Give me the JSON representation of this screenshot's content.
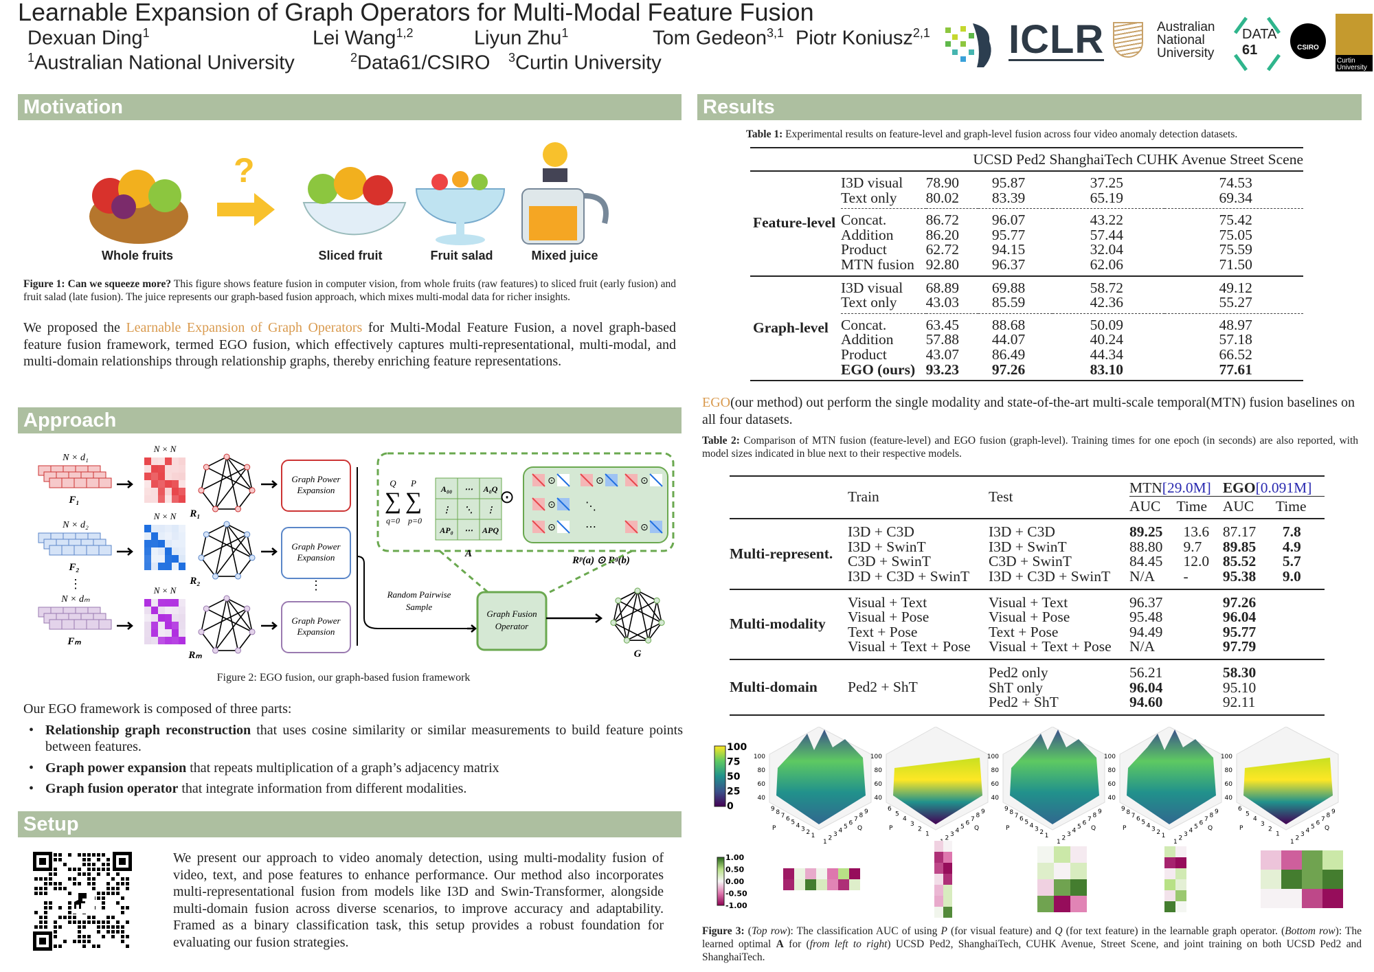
{
  "header": {
    "title": "Learnable Expansion of Graph Operators for Multi-Modal Feature Fusion",
    "authors": [
      {
        "name": "Dexuan Ding",
        "sup": "1"
      },
      {
        "name": "Lei Wang",
        "sup": "1,2"
      },
      {
        "name": "Liyun Zhu",
        "sup": "1"
      },
      {
        "name": "Tom Gedeon",
        "sup": "3,1"
      },
      {
        "name": "Piotr Koniusz",
        "sup": "2,1"
      }
    ],
    "affiliations": [
      {
        "sup": "1",
        "name": "Australian National University"
      },
      {
        "sup": "2",
        "name": "Data61/CSIRO"
      },
      {
        "sup": "3",
        "name": "Curtin University"
      }
    ],
    "logos": {
      "iclr": "ICLR",
      "anu": "Australian National University",
      "data61_a": "DATA",
      "data61_b": "61",
      "csiro": "CSIRO",
      "curtin": "Curtin University"
    }
  },
  "motivation": {
    "heading": "Motivation",
    "labels": [
      "Whole fruits",
      "Sliced fruit",
      "Fruit salad",
      "Mixed juice"
    ],
    "question": "?",
    "caption_bold": "Figure 1: Can we squeeze more?",
    "caption": " This figure shows feature fusion in computer vision, from whole fruits (raw features) to sliced fruit (early fusion) and fruit salad (late fusion). The juice represents our graph-based fusion approach, which mixes multi-modal data for richer insights.",
    "para_pre": "We proposed the ",
    "para_highlight": "Learnable Expansion of Graph Operators",
    "para_post": " for Multi-Modal Feature Fusion, a novel graph-based feature fusion framework, termed EGO fusion, which effectively captures multi-representational, multi-modal, and multi-domain relationships through relationship graphs, thereby enriching feature representations."
  },
  "approach": {
    "heading": "Approach",
    "diagram": {
      "nd": [
        "N × d₁",
        "N × d₂",
        "N × dₘ"
      ],
      "nn": "N × N",
      "F": [
        "F₁",
        "F₂",
        "Fₘ"
      ],
      "R": [
        "R₁",
        "R₂",
        "Rₘ"
      ],
      "gpe": "Graph Power Expansion",
      "sum_q": "Q",
      "sum_p": "P",
      "q0": "q=0",
      "p0": "p=0",
      "A": "A",
      "a_cells": [
        "A₀₀",
        "⋯",
        "A₀Q",
        "⋮",
        "⋱",
        "⋮",
        "AP₀",
        "⋯",
        "APQ"
      ],
      "rr": "Rᵖ(a) ⊙ Rᵍ(b)",
      "random": "Random Pairwise Sample",
      "gfo": "Graph Fusion Operator",
      "G": "G",
      "colors": {
        "red": "#e8474c",
        "blue": "#1f6fe0",
        "purple": "#b030e0",
        "green": "#6aa84f"
      }
    },
    "caption": "Figure 2: EGO fusion, our graph-based fusion framework",
    "intro": "Our EGO framework is composed of three parts:",
    "bullets": [
      {
        "bold": "Relationship graph reconstruction",
        "text": " that uses cosine similarity or similar measurements to build feature points between features."
      },
      {
        "bold": "Graph power expansion",
        "text": " that repeats multiplication of a graph’s adjacency matrix"
      },
      {
        "bold": "Graph fusion operator",
        "text": " that integrate information from different modalities."
      }
    ]
  },
  "setup": {
    "heading": "Setup",
    "text": "We present our approach to video anomaly detection, using multi-modality fusion of video, text, and pose features to enhance performance.  Our method also incorporates multi-representational fusion from models like I3D and Swin-Transformer, alongside multi-domain fusion across diverse scenarios, to improve accuracy and adaptability.  Framed as a binary classification task, this setup provides a robust foundation for evaluating our fusion strategies."
  },
  "results": {
    "heading": "Results",
    "table1": {
      "caption_bold": "Table 1:",
      "caption": " Experimental results on feature-level and graph-level fusion across four video anomaly detection datasets.",
      "columns": [
        "UCSD Ped2",
        "ShanghaiTech",
        "CUHK Avenue",
        "Street Scene"
      ],
      "groups": [
        {
          "label": "Feature-level",
          "blocks": [
            [
              {
                "m": "I3D visual",
                "v": [
                  "78.90",
                  "95.87",
                  "37.25",
                  "74.53"
                ]
              },
              {
                "m": "Text only",
                "v": [
                  "80.02",
                  "83.39",
                  "65.19",
                  "69.34"
                ]
              }
            ],
            [
              {
                "m": "Concat.",
                "v": [
                  "86.72",
                  "96.07",
                  "43.22",
                  "75.42"
                ]
              },
              {
                "m": "Addition",
                "v": [
                  "86.20",
                  "95.77",
                  "57.44",
                  "75.05"
                ]
              },
              {
                "m": "Product",
                "v": [
                  "62.72",
                  "94.15",
                  "32.04",
                  "75.59"
                ]
              },
              {
                "m": "MTN fusion",
                "v": [
                  "92.80",
                  "96.37",
                  "62.06",
                  "71.50"
                ]
              }
            ]
          ]
        },
        {
          "label": "Graph-level",
          "blocks": [
            [
              {
                "m": "I3D visual",
                "v": [
                  "68.89",
                  "69.88",
                  "58.72",
                  "49.12"
                ]
              },
              {
                "m": "Text only",
                "v": [
                  "43.03",
                  "85.59",
                  "42.36",
                  "55.27"
                ]
              }
            ],
            [
              {
                "m": "Concat.",
                "v": [
                  "63.45",
                  "88.68",
                  "50.09",
                  "48.97"
                ]
              },
              {
                "m": "Addition",
                "v": [
                  "57.88",
                  "44.07",
                  "40.24",
                  "57.18"
                ]
              },
              {
                "m": "Product",
                "v": [
                  "43.07",
                  "86.49",
                  "44.34",
                  "66.52"
                ]
              },
              {
                "m": "EGO (ours)",
                "v": [
                  "93.23",
                  "97.26",
                  "83.10",
                  "77.61"
                ],
                "bold": true
              }
            ]
          ]
        }
      ]
    },
    "summary_highlight": "EGO",
    "summary": "(our method) out perform the single modality and state-of-the-art multi-scale temporal(MTN) fusion baselines on all four datasets.",
    "table2": {
      "caption_bold": "Table 2:",
      "caption": " Comparison of MTN fusion (feature-level) and EGO fusion (graph-level). Training times for one epoch (in seconds) are also reported, with model sizes indicated in blue next to their respective models.",
      "h_train": "Train",
      "h_test": "Test",
      "h_mtn": "MTN",
      "h_mtn_size": "[29.0M]",
      "h_ego": "EGO",
      "h_ego_size": "[0.091M]",
      "h_auc": "AUC",
      "h_time": "Time",
      "groups": [
        {
          "label": "Multi-represent.",
          "rows": [
            {
              "train": "I3D + C3D",
              "test": "I3D + C3D",
              "ma": "89.25",
              "mt": "13.6",
              "ea": "87.17",
              "et": "7.8",
              "bold": [
                "ma",
                "et"
              ]
            },
            {
              "train": "I3D + SwinT",
              "test": "I3D + SwinT",
              "ma": "88.80",
              "mt": "9.7",
              "ea": "89.85",
              "et": "4.9",
              "bold": [
                "ea",
                "et"
              ]
            },
            {
              "train": "C3D + SwinT",
              "test": "C3D + SwinT",
              "ma": "84.45",
              "mt": "12.0",
              "ea": "85.52",
              "et": "5.7",
              "bold": [
                "ea",
                "et"
              ]
            },
            {
              "train": "I3D + C3D + SwinT",
              "test": "I3D + C3D + SwinT",
              "ma": "N/A",
              "mt": "-",
              "ea": "95.38",
              "et": "9.0",
              "bold": [
                "ea",
                "et"
              ]
            }
          ]
        },
        {
          "label": "Multi-modality",
          "rows": [
            {
              "train": "Visual + Text",
              "test": "Visual + Text",
              "ma": "96.37",
              "mt": "",
              "ea": "97.26",
              "et": "",
              "bold": [
                "ea"
              ]
            },
            {
              "train": "Visual + Pose",
              "test": "Visual + Pose",
              "ma": "95.48",
              "mt": "",
              "ea": "96.04",
              "et": "",
              "bold": [
                "ea"
              ]
            },
            {
              "train": "Text + Pose",
              "test": "Text + Pose",
              "ma": "94.49",
              "mt": "",
              "ea": "95.77",
              "et": "",
              "bold": [
                "ea"
              ]
            },
            {
              "train": "Visual + Text + Pose",
              "test": "Visual + Text + Pose",
              "ma": "N/A",
              "mt": "",
              "ea": "97.79",
              "et": "",
              "bold": [
                "ea"
              ]
            }
          ]
        },
        {
          "label": "Multi-domain",
          "train": "Ped2 + ShT",
          "rows": [
            {
              "train": "",
              "test": "Ped2 only",
              "ma": "56.21",
              "mt": "",
              "ea": "58.30",
              "et": "",
              "bold": [
                "ea"
              ]
            },
            {
              "train": "",
              "test": "ShT only",
              "ma": "96.04",
              "mt": "",
              "ea": "95.10",
              "et": "",
              "bold": [
                "ma"
              ]
            },
            {
              "train": "",
              "test": "Ped2 + ShT",
              "ma": "94.60",
              "mt": "",
              "ea": "92.11",
              "et": "",
              "bold": [
                "ma"
              ]
            }
          ]
        }
      ]
    },
    "figure3": {
      "caption_bold": "Figure 3:",
      "caption_parts": [
        "(",
        "Top row",
        "):  The classification AUC of using ",
        "P",
        " (for visual feature) and ",
        "Q",
        " (for text feature) in the learnable graph operator. (",
        "Bottom row",
        "): The learned optimal ",
        "A",
        " for (",
        "from left to right",
        ") UCSD Ped2, ShanghaiTech, CUHK Avenue, Street Scene, and joint training on both UCSD Ped2 and ShanghaiTech."
      ],
      "colorbar_top": [
        "100",
        "75",
        "50",
        "25",
        "0"
      ],
      "colorbar_bottom": [
        "1.00",
        "0.50",
        "0.00",
        "-0.50",
        "-1.00"
      ],
      "z_ticks": [
        "100",
        "80",
        "60",
        "40"
      ],
      "p_label": "P",
      "q_label": "Q",
      "surfaces": [
        {
          "p_ticks": [
            "9",
            "8",
            "7",
            "6",
            "5",
            "4",
            "3",
            "2",
            "1"
          ],
          "q_ticks": [
            "1",
            "2",
            "3",
            "4",
            "5",
            "6",
            "7",
            "8",
            "9"
          ]
        },
        {
          "p_ticks": [
            "6",
            "5",
            "4",
            "3",
            "2",
            "1"
          ],
          "q_ticks": [
            "1",
            "2",
            "3",
            "4",
            "5",
            "6",
            "7",
            "8",
            "9"
          ]
        },
        {
          "p_ticks": [
            "9",
            "8",
            "7",
            "6",
            "5",
            "4",
            "3",
            "2",
            "1"
          ],
          "q_ticks": [
            "1",
            "2",
            "3",
            "4",
            "5",
            "6",
            "7",
            "8",
            "9"
          ]
        },
        {
          "p_ticks": [
            "9",
            "8",
            "7",
            "6",
            "5",
            "4",
            "3",
            "2",
            "1"
          ],
          "q_ticks": [
            "1",
            "2",
            "3",
            "4",
            "5",
            "6",
            "7",
            "8",
            "9"
          ]
        },
        {
          "p_ticks": [
            "6",
            "5",
            "4",
            "3",
            "2",
            "1"
          ],
          "q_ticks": [
            "1",
            "2",
            "3",
            "4",
            "5",
            "6",
            "7",
            "8",
            "9"
          ]
        }
      ],
      "heatmaps": [
        [
          [
            -0.9,
            0.1,
            -0.3,
            0.05,
            -0.5,
            0.5,
            -0.95
          ],
          [
            -0.85,
            0.15,
            0.9,
            0.25,
            -0.45,
            -0.8,
            0.2
          ]
        ],
        [
          [
            -0.15,
            -0.02
          ],
          [
            -0.8,
            -0.5
          ],
          [
            -0.7,
            -0.95
          ],
          [
            -0.1,
            -0.8
          ],
          [
            -0.25,
            0.25
          ],
          [
            -0.3,
            0.25
          ],
          [
            0.05,
            0.85
          ]
        ],
        [
          [
            0.03,
            0.35,
            -0.05
          ],
          [
            0.2,
            -0.02,
            0.25
          ],
          [
            -0.15,
            0.75,
            0.9
          ],
          [
            0.75,
            -0.95,
            -0.45
          ]
        ],
        [
          [
            0.3,
            -0.03
          ],
          [
            -0.85,
            -0.95
          ],
          [
            -0.05,
            0.3
          ],
          [
            0.5,
            0.15
          ],
          [
            -0.08,
            0.6
          ],
          [
            0.9,
            0.02
          ]
        ],
        [
          [
            -0.2,
            -0.6,
            0.75,
            0.35
          ],
          [
            0.15,
            0.9,
            0.75,
            0.9
          ],
          [
            -0.02,
            -0.02,
            -0.7,
            -0.95
          ]
        ]
      ]
    }
  }
}
